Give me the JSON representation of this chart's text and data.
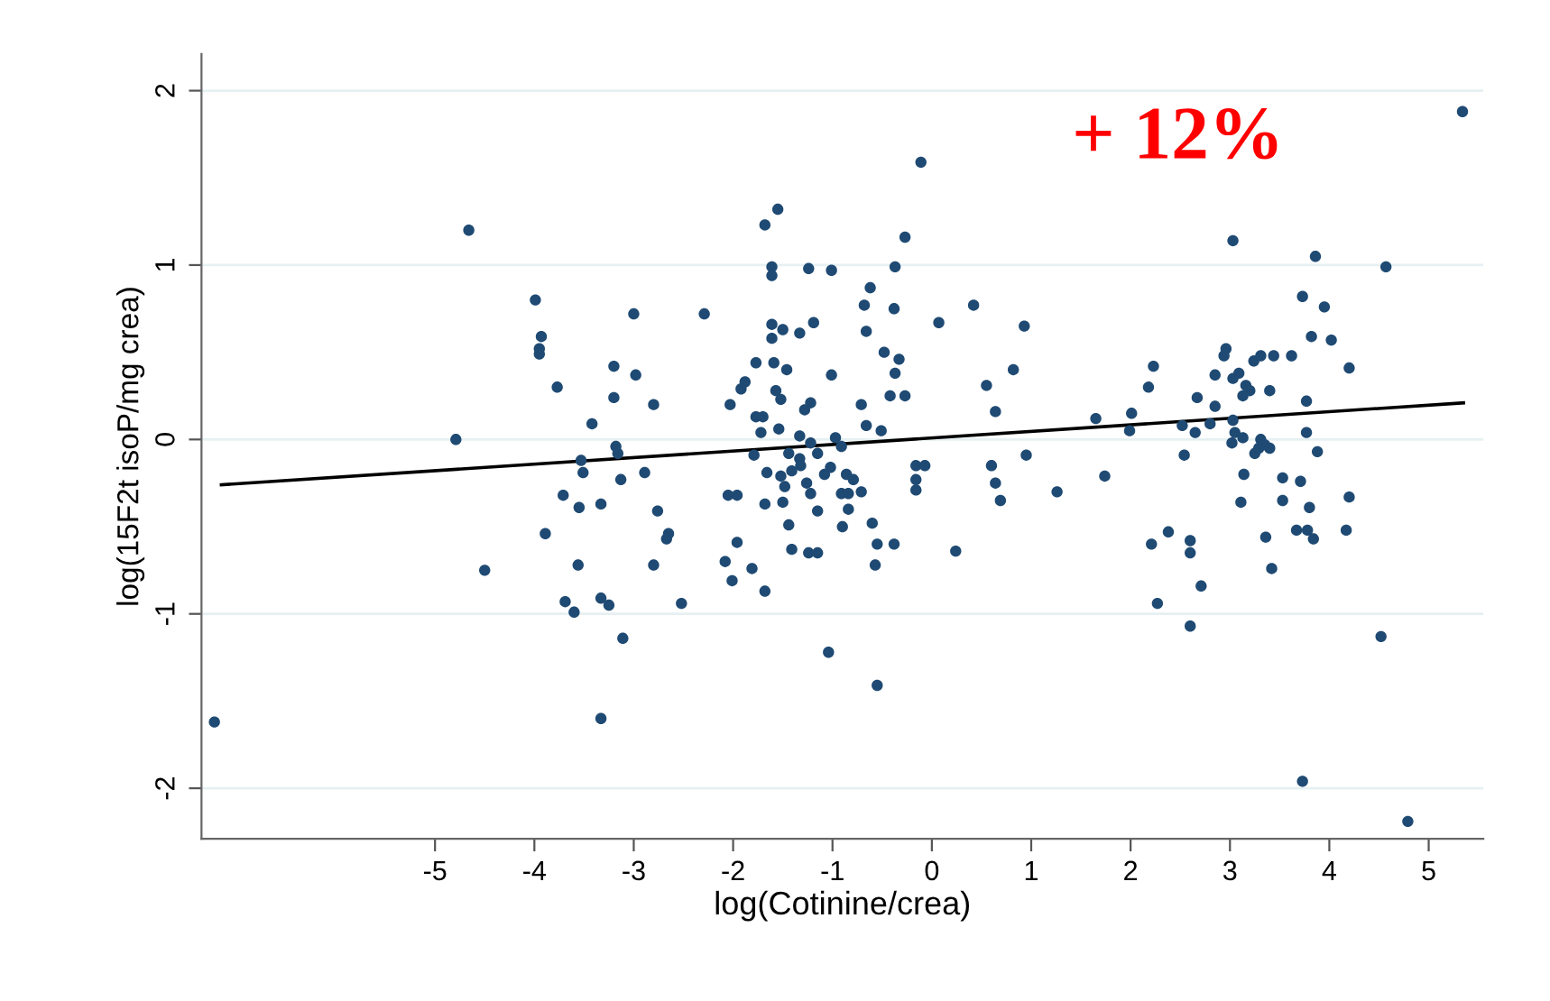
{
  "chart_data": {
    "type": "scatter",
    "xlabel": "log(Cotinine/crea)",
    "ylabel": "log(15F2t isoP/mg crea)",
    "annotations": [
      "+ 12%"
    ],
    "xlim": [
      -7.35,
      5.55
    ],
    "xticks": [
      -5,
      -4,
      -3,
      -2,
      -1,
      0,
      1,
      2,
      3,
      4,
      5
    ],
    "ylim": [
      -2.29,
      2.21
    ],
    "yticks": [
      -2,
      -1,
      0,
      1,
      2
    ],
    "grid": "y",
    "marker": "circle",
    "series": [
      {
        "color": "#1f4a73",
        "x": [
          -7.22,
          -4.66,
          -3.99,
          -3.93,
          -3.95,
          -3.95,
          -3.0,
          -3.77,
          -3.2,
          -2.98,
          -3.2,
          -3.42,
          -4.79,
          -3.18,
          -3.16,
          -3.53,
          -3.51,
          -3.13,
          -2.89,
          -3.71,
          -3.55,
          -3.33,
          -3.89,
          -4.5,
          -3.56,
          -3.69,
          -3.6,
          -3.33,
          -3.25,
          -3.11,
          -3.33,
          -2.29,
          -2.8,
          -2.76,
          -2.65,
          -2.67,
          -2.8,
          -2.52,
          -0.11,
          -1.55,
          -1.68,
          -1.61,
          -1.61,
          -1.24,
          -1.01,
          -0.27,
          -0.37,
          -0.62,
          -0.68,
          -0.38,
          -0.66,
          0.07,
          0.42,
          0.93,
          -1.61,
          -1.5,
          -1.61,
          -1.33,
          -1.19,
          -0.48,
          -0.33,
          -0.37,
          -1.77,
          -1.59,
          -1.46,
          -1.01,
          -1.88,
          -1.92,
          -1.57,
          -1.52,
          -2.03,
          -1.22,
          -1.28,
          -0.71,
          -0.42,
          -0.27,
          0.55,
          0.82,
          0.64,
          -1.77,
          -1.7,
          -1.72,
          -0.66,
          -0.51,
          -1.54,
          -1.33,
          -1.22,
          -0.97,
          -0.91,
          -1.79,
          -1.44,
          -1.33,
          -1.15,
          -1.66,
          -1.52,
          -1.41,
          -1.32,
          -1.02,
          -1.08,
          -0.86,
          -0.79,
          -1.48,
          -1.26,
          -1.22,
          -0.16,
          -0.07,
          -0.16,
          -0.16,
          0.6,
          0.64,
          0.69,
          0.95,
          1.26,
          -2.05,
          -1.96,
          -1.68,
          -1.5,
          -0.91,
          -0.84,
          -0.71,
          -1.15,
          -0.84,
          -1.44,
          -0.9,
          -0.6,
          -1.96,
          -0.55,
          -0.38,
          -1.41,
          -1.24,
          -1.15,
          0.24,
          -2.08,
          -1.81,
          -0.57,
          -2.01,
          -1.68,
          -1.04,
          -0.55,
          5.34,
          3.03,
          3.86,
          4.57,
          3.73,
          3.95,
          3.82,
          4.02,
          2.96,
          2.94,
          2.85,
          3.09,
          3.24,
          3.31,
          3.44,
          3.62,
          4.2,
          2.23,
          2.18,
          3.03,
          3.16,
          3.2,
          3.4,
          3.13,
          2.67,
          2.85,
          3.77,
          1.65,
          2.01,
          1.99,
          2.52,
          2.65,
          2.8,
          3.03,
          3.05,
          3.13,
          3.02,
          3.77,
          3.31,
          3.35,
          3.25,
          3.29,
          3.4,
          3.88,
          2.54,
          1.74,
          3.14,
          3.53,
          3.71,
          3.11,
          3.53,
          3.8,
          4.2,
          2.38,
          2.21,
          2.6,
          2.6,
          3.36,
          3.67,
          3.78,
          3.84,
          4.17,
          3.42,
          2.71,
          2.27,
          2.6,
          4.52,
          3.73,
          4.79
        ],
        "values": [
          -1.62,
          1.2,
          0.8,
          0.59,
          0.52,
          0.49,
          0.72,
          0.3,
          0.42,
          0.37,
          0.24,
          0.09,
          0.0,
          -0.04,
          -0.08,
          -0.12,
          -0.19,
          -0.23,
          -0.19,
          -0.32,
          -0.39,
          -0.37,
          -0.54,
          -0.75,
          -0.72,
          -0.93,
          -0.99,
          -0.91,
          -0.95,
          -1.14,
          -1.6,
          0.72,
          0.2,
          -0.41,
          -0.54,
          -0.57,
          -0.72,
          -0.94,
          1.59,
          1.32,
          1.23,
          0.99,
          0.94,
          0.98,
          0.97,
          1.16,
          0.99,
          0.87,
          0.77,
          0.75,
          0.62,
          0.67,
          0.77,
          0.65,
          0.66,
          0.63,
          0.58,
          0.61,
          0.67,
          0.5,
          0.46,
          0.38,
          0.44,
          0.44,
          0.4,
          0.37,
          0.33,
          0.29,
          0.28,
          0.23,
          0.2,
          0.21,
          0.17,
          0.2,
          0.25,
          0.25,
          0.31,
          0.4,
          0.16,
          0.13,
          0.13,
          0.04,
          0.08,
          0.05,
          0.06,
          0.02,
          -0.02,
          0.01,
          -0.04,
          -0.09,
          -0.08,
          -0.11,
          -0.08,
          -0.19,
          -0.21,
          -0.18,
          -0.15,
          -0.16,
          -0.2,
          -0.2,
          -0.23,
          -0.27,
          -0.25,
          -0.31,
          -0.15,
          -0.15,
          -0.23,
          -0.29,
          -0.15,
          -0.25,
          -0.35,
          -0.09,
          -0.3,
          -0.32,
          -0.32,
          -0.37,
          -0.36,
          -0.31,
          -0.31,
          -0.3,
          -0.41,
          -0.4,
          -0.49,
          -0.5,
          -0.48,
          -0.59,
          -0.6,
          -0.6,
          -0.63,
          -0.65,
          -0.65,
          -0.64,
          -0.7,
          -0.74,
          -0.72,
          -0.81,
          -0.87,
          -1.22,
          -1.41,
          1.88,
          1.14,
          1.05,
          0.99,
          0.82,
          0.76,
          0.59,
          0.57,
          0.52,
          0.48,
          0.37,
          0.38,
          0.45,
          0.48,
          0.48,
          0.48,
          0.41,
          0.42,
          0.3,
          0.35,
          0.31,
          0.28,
          0.28,
          0.25,
          0.24,
          0.19,
          0.22,
          0.12,
          0.15,
          0.05,
          0.08,
          0.04,
          0.09,
          0.11,
          0.04,
          0.01,
          -0.02,
          0.04,
          0.0,
          -0.03,
          -0.08,
          -0.05,
          -0.05,
          -0.07,
          -0.09,
          -0.21,
          -0.2,
          -0.22,
          -0.24,
          -0.36,
          -0.35,
          -0.39,
          -0.33,
          -0.53,
          -0.6,
          -0.58,
          -0.65,
          -0.56,
          -0.52,
          -0.52,
          -0.57,
          -0.52,
          -0.74,
          -0.84,
          -0.94,
          -1.07,
          -1.13,
          -1.96,
          -2.19
        ]
      },
      {
        "type": "line",
        "marker": "none",
        "color": "#000000",
        "x": [
          -7.15,
          5.35
        ],
        "values": [
          -0.26,
          0.21
        ]
      }
    ]
  }
}
